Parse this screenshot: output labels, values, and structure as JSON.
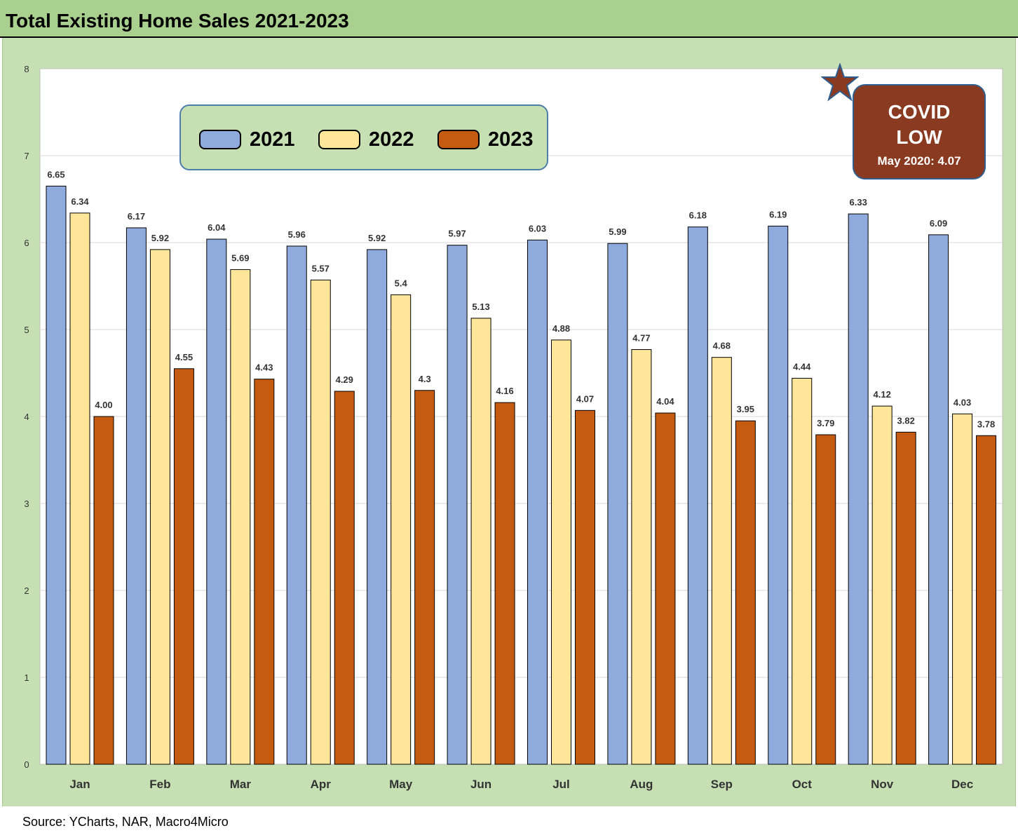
{
  "title": "Total Existing Home Sales 2021-2023",
  "source": "Source: YCharts, NAR, Macro4Micro",
  "colors": {
    "2021": "#8faadc",
    "2022": "#ffe699",
    "2023": "#c55a11"
  },
  "annotation": {
    "line1": "COVID",
    "line2": "LOW",
    "line3": "May 2020: 4.07",
    "icon": "star-icon"
  },
  "chart_data": {
    "type": "bar",
    "categories": [
      "Jan",
      "Feb",
      "Mar",
      "Apr",
      "May",
      "Jun",
      "Jul",
      "Aug",
      "Sep",
      "Oct",
      "Nov",
      "Dec"
    ],
    "series": [
      {
        "name": "2021",
        "values": [
          6.65,
          6.17,
          6.04,
          5.96,
          5.92,
          5.97,
          6.03,
          5.99,
          6.18,
          6.19,
          6.33,
          6.09
        ],
        "labels": [
          "6.65",
          "6.17",
          "6.04",
          "5.96",
          "5.92",
          "5.97",
          "6.03",
          "5.99",
          "6.18",
          "6.19",
          "6.33",
          "6.09"
        ]
      },
      {
        "name": "2022",
        "values": [
          6.34,
          5.92,
          5.69,
          5.57,
          5.4,
          5.13,
          4.88,
          4.77,
          4.68,
          4.44,
          4.12,
          4.03
        ],
        "labels": [
          "6.34",
          "5.92",
          "5.69",
          "5.57",
          "5.4",
          "5.13",
          "4.88",
          "4.77",
          "4.68",
          "4.44",
          "4.12",
          "4.03"
        ]
      },
      {
        "name": "2023",
        "values": [
          4.0,
          4.55,
          4.43,
          4.29,
          4.3,
          4.16,
          4.07,
          4.04,
          3.95,
          3.79,
          3.82,
          3.78
        ],
        "labels": [
          "4.00",
          "4.55",
          "4.43",
          "4.29",
          "4.3",
          "4.16",
          "4.07",
          "4.04",
          "3.95",
          "3.79",
          "3.82",
          "3.78"
        ]
      }
    ],
    "ylim": [
      0,
      8
    ],
    "yticks": [
      "0",
      "1",
      "2",
      "3",
      "4",
      "5",
      "6",
      "7",
      "8"
    ],
    "grid": true,
    "legend": "top-left"
  }
}
